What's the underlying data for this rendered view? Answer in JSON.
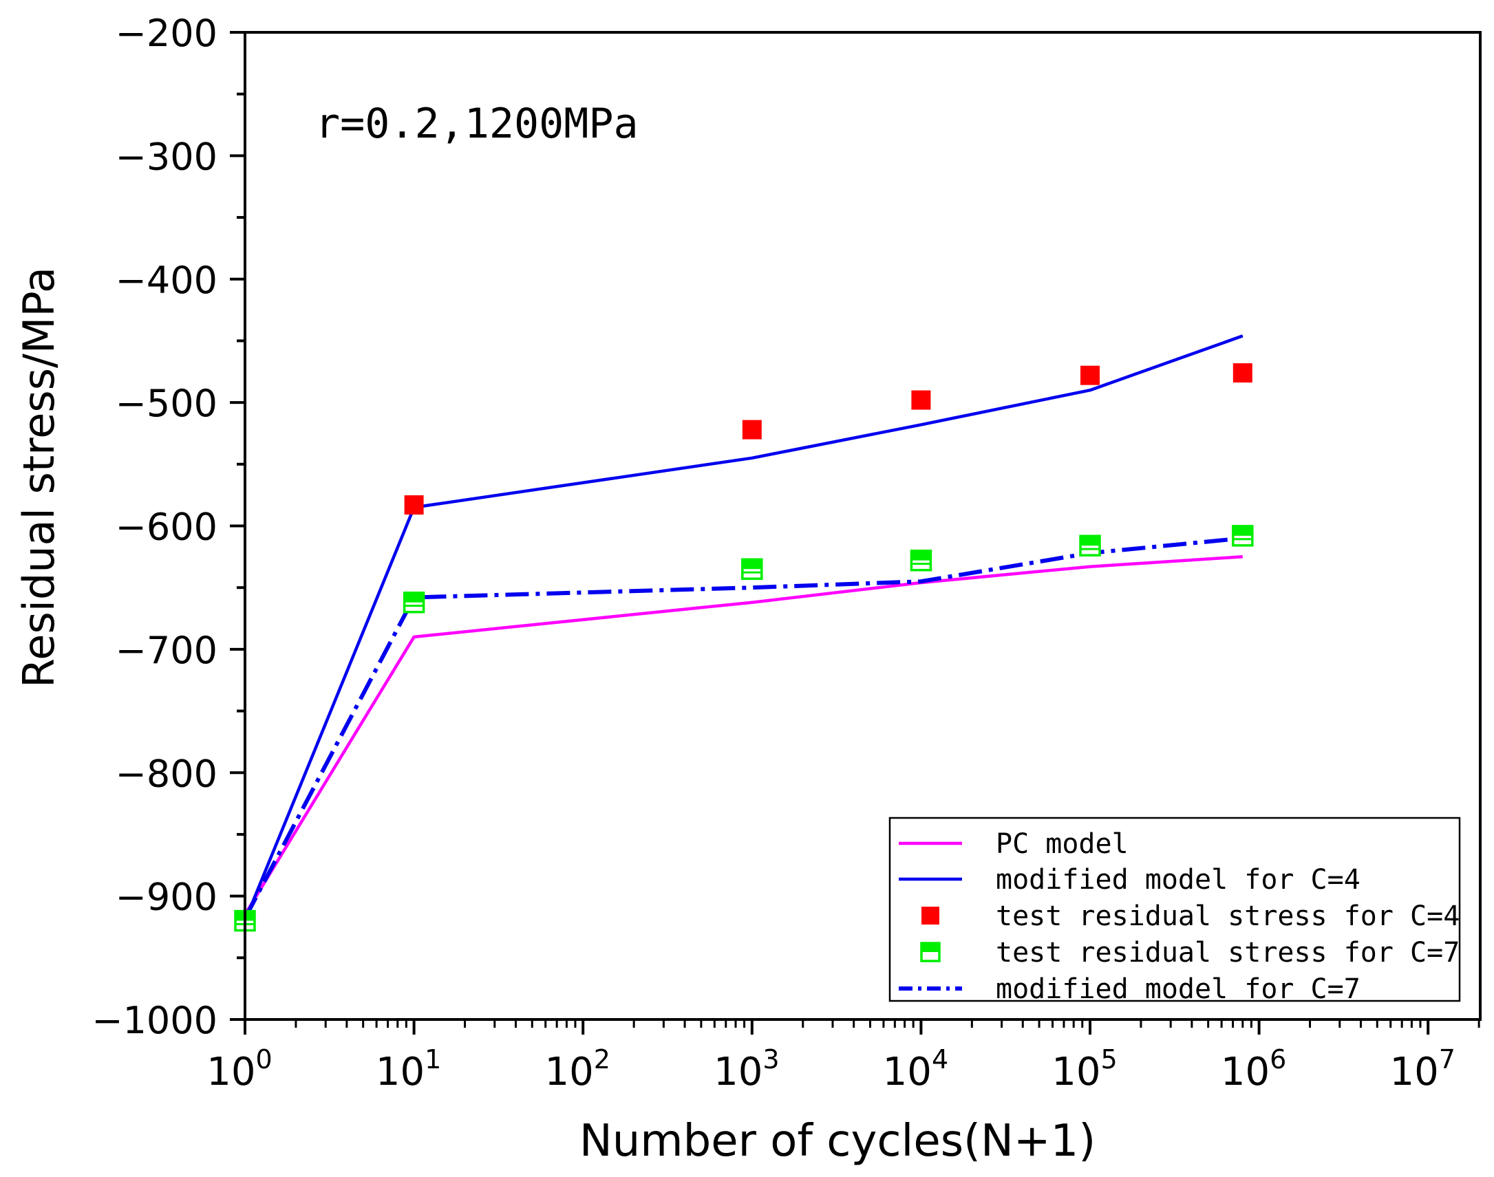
{
  "chart_data": {
    "type": "line",
    "annotation": "r=0.2,1200MPa",
    "xlabel": "Number of cycles(N+1)",
    "ylabel": "Residual stress/MPa",
    "x_scale": "log",
    "xlim": [
      1,
      14000000
    ],
    "ylim": [
      -1000,
      -200
    ],
    "x_ticks": [
      {
        "value": 1,
        "base": "10",
        "exp": "0"
      },
      {
        "value": 10,
        "base": "10",
        "exp": "1"
      },
      {
        "value": 100,
        "base": "10",
        "exp": "2"
      },
      {
        "value": 1000,
        "base": "10",
        "exp": "3"
      },
      {
        "value": 10000,
        "base": "10",
        "exp": "4"
      },
      {
        "value": 100000,
        "base": "10",
        "exp": "5"
      },
      {
        "value": 1000000,
        "base": "10",
        "exp": "6"
      },
      {
        "value": 10000000,
        "base": "10",
        "exp": "7"
      }
    ],
    "y_ticks": [
      "-200",
      "-300",
      "-400",
      "-500",
      "-600",
      "-700",
      "-800",
      "-900",
      "-1000"
    ],
    "grid": false,
    "legend_position": "bottom-right",
    "series": [
      {
        "name": "PC model",
        "kind": "line",
        "style": "solid",
        "color": "#ff00ff",
        "x": [
          1,
          10,
          1000,
          10000,
          100000,
          800000
        ],
        "y": [
          -915,
          -690,
          -662,
          -646,
          -633,
          -625
        ]
      },
      {
        "name": "modified model for C=4",
        "kind": "line",
        "style": "solid",
        "color": "#0000ee",
        "x": [
          1,
          10,
          1000,
          10000,
          100000,
          800000
        ],
        "y": [
          -920,
          -585,
          -545,
          -518,
          -490,
          -446
        ]
      },
      {
        "name": "test residual stress for C=4",
        "kind": "scatter",
        "marker": "filled-square",
        "color": "#ff0000",
        "x": [
          10,
          1000,
          10000,
          100000,
          800000
        ],
        "y": [
          -583,
          -522,
          -498,
          -478,
          -476
        ]
      },
      {
        "name": "test residual stress for C=7",
        "kind": "scatter",
        "marker": "half-filled-square",
        "color": "#00ee00",
        "x": [
          1,
          10,
          1000,
          10000,
          100000,
          800000
        ],
        "y": [
          -920,
          -662,
          -635,
          -628,
          -616,
          -608
        ]
      },
      {
        "name": "modified model for C=7",
        "kind": "line",
        "style": "dashdot",
        "color": "#0000ee",
        "x": [
          1,
          10,
          1000,
          10000,
          100000,
          800000
        ],
        "y": [
          -918,
          -658,
          -650,
          -645,
          -622,
          -610
        ]
      }
    ]
  }
}
